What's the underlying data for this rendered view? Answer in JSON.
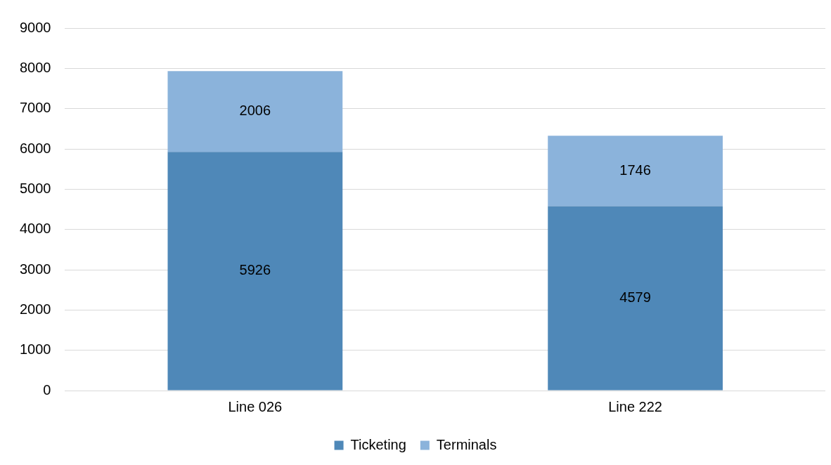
{
  "chart_data": {
    "type": "bar",
    "stacked": true,
    "categories": [
      "Line 026",
      "Line 222"
    ],
    "series": [
      {
        "name": "Ticketing",
        "color": "#4f88b8",
        "values": [
          5926,
          4579
        ]
      },
      {
        "name": "Terminals",
        "color": "#8bb3db",
        "values": [
          2006,
          1746
        ]
      }
    ],
    "ylim": [
      0,
      9000
    ],
    "yticks": [
      0,
      1000,
      2000,
      3000,
      4000,
      5000,
      6000,
      7000,
      8000,
      9000
    ],
    "grid": "y",
    "legend": "bottom",
    "data_labels": true
  }
}
